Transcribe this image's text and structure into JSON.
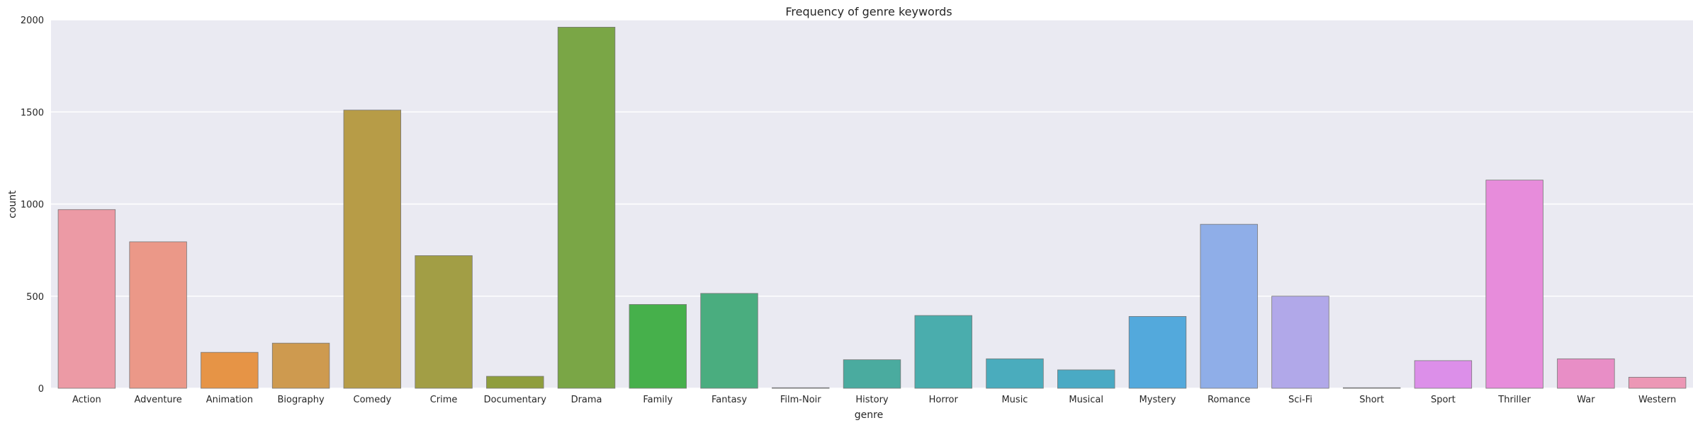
{
  "chart_data": {
    "type": "bar",
    "title": "Frequency of genre keywords",
    "xlabel": "genre",
    "ylabel": "count",
    "ylim": [
      0,
      2000
    ],
    "yticks": [
      0,
      500,
      1000,
      1500,
      2000
    ],
    "grid": true,
    "categories": [
      "Action",
      "Adventure",
      "Animation",
      "Biography",
      "Comedy",
      "Crime",
      "Documentary",
      "Drama",
      "Family",
      "Fantasy",
      "Film-Noir",
      "History",
      "Horror",
      "Music",
      "Musical",
      "Mystery",
      "Romance",
      "Sci-Fi",
      "Short",
      "Sport",
      "Thriller",
      "War",
      "Western"
    ],
    "values": [
      970,
      795,
      195,
      245,
      1510,
      720,
      65,
      1960,
      455,
      515,
      3,
      155,
      395,
      160,
      100,
      390,
      890,
      500,
      3,
      150,
      1130,
      160,
      60
    ],
    "colors": [
      "#ec9aa5",
      "#eb9888",
      "#e69446",
      "#ce9a4f",
      "#b79c47",
      "#a29e45",
      "#8f9e3d",
      "#7aa646",
      "#46b04b",
      "#4aad7f",
      "#4aab94",
      "#4aab9f",
      "#4aadad",
      "#4aacbd",
      "#4aaac4",
      "#53a9dc",
      "#8faee8",
      "#b1a8e9",
      "#d89bef",
      "#dc8fe9",
      "#e78cdb",
      "#e88ec6",
      "#ec97b5"
    ]
  }
}
